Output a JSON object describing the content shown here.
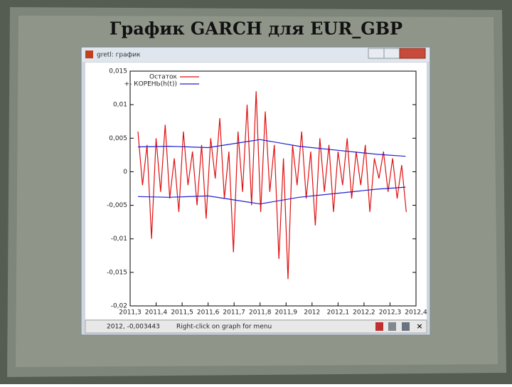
{
  "slide_title": "График GARCH для EUR_GBP",
  "window": {
    "title": "gretl: график",
    "status_coords": "2012, -0,003443",
    "status_hint": "Right-click on graph for menu"
  },
  "chart_data": {
    "type": "line",
    "xlim": [
      2011.3,
      2012.4
    ],
    "xticks": [
      {
        "value": 2011.3,
        "label": "2011,3"
      },
      {
        "value": 2011.4,
        "label": "2011,4"
      },
      {
        "value": 2011.5,
        "label": "2011,5"
      },
      {
        "value": 2011.6,
        "label": "2011,6"
      },
      {
        "value": 2011.7,
        "label": "2011,7"
      },
      {
        "value": 2011.8,
        "label": "2011,8"
      },
      {
        "value": 2011.9,
        "label": "2011,9"
      },
      2012,
      {
        "value": 2012.1,
        "label": "2012,1"
      },
      {
        "value": 2012.2,
        "label": "2012,2"
      },
      {
        "value": 2012.3,
        "label": "2012,3"
      },
      {
        "value": 2012.4,
        "label": "2012,4"
      }
    ],
    "ylim": [
      -0.02,
      0.015
    ],
    "yticks": [
      {
        "value": 0.015,
        "label": "0,015"
      },
      {
        "value": 0.01,
        "label": "0,01"
      },
      {
        "value": 0.005,
        "label": "0,005"
      },
      0,
      {
        "value": -0.005,
        "label": "-0,005"
      },
      {
        "value": -0.01,
        "label": "-0,01"
      },
      {
        "value": -0.015,
        "label": "-0,015"
      },
      {
        "value": -0.02,
        "label": "-0,02"
      }
    ],
    "series": [
      {
        "name": "Остаток",
        "color": "#e01010",
        "x": [
          2011.33,
          2011.3475,
          2011.365,
          2011.3825,
          2011.4,
          2011.4175,
          2011.435,
          2011.4525,
          2011.47,
          2011.4875,
          2011.505,
          2011.5225,
          2011.54,
          2011.5575,
          2011.575,
          2011.5925,
          2011.61,
          2011.6275,
          2011.645,
          2011.6625,
          2011.68,
          2011.6975,
          2011.715,
          2011.7325,
          2011.75,
          2011.7675,
          2011.785,
          2011.8025,
          2011.82,
          2011.8375,
          2011.855,
          2011.8725,
          2011.89,
          2011.9075,
          2011.925,
          2011.9425,
          2011.96,
          2011.9775,
          2011.995,
          2012.0125,
          2012.03,
          2012.0475,
          2012.065,
          2012.0825,
          2012.1,
          2012.1175,
          2012.135,
          2012.1525,
          2012.17,
          2012.1875,
          2012.205,
          2012.2225,
          2012.24,
          2012.2575,
          2012.275,
          2012.2925,
          2012.31,
          2012.3275,
          2012.345,
          2012.3625
        ],
        "values": [
          0.006,
          -0.002,
          0.004,
          -0.01,
          0.005,
          -0.003,
          0.007,
          -0.004,
          0.002,
          -0.006,
          0.006,
          -0.002,
          0.003,
          -0.005,
          0.004,
          -0.007,
          0.005,
          -0.001,
          0.008,
          -0.004,
          0.003,
          -0.012,
          0.006,
          -0.003,
          0.01,
          -0.005,
          0.012,
          -0.006,
          0.009,
          -0.003,
          0.004,
          -0.013,
          0.002,
          -0.016,
          0.004,
          -0.002,
          0.006,
          -0.004,
          0.003,
          -0.008,
          0.005,
          -0.003,
          0.004,
          -0.006,
          0.003,
          -0.002,
          0.005,
          -0.004,
          0.003,
          -0.002,
          0.004,
          -0.006,
          0.002,
          -0.001,
          0.003,
          -0.003,
          0.002,
          -0.004,
          0.001,
          -0.006
        ]
      },
      {
        "name": "+- КОРЕНЬ(h(t))",
        "color": "#2020d0",
        "x": [
          2011.33,
          2011.45,
          2011.6,
          2011.75,
          2011.8,
          2011.95,
          2012.1,
          2012.25,
          2012.36
        ],
        "values": [
          0.0037,
          0.0038,
          0.0036,
          0.0045,
          0.0048,
          0.0038,
          0.0032,
          0.0026,
          0.0023
        ]
      },
      {
        "color": "#2020d0",
        "x": [
          2011.33,
          2011.45,
          2011.6,
          2011.75,
          2011.8,
          2011.95,
          2012.1,
          2012.25,
          2012.36
        ],
        "values": [
          -0.0037,
          -0.0038,
          -0.0036,
          -0.0045,
          -0.0048,
          -0.0038,
          -0.0032,
          -0.0026,
          -0.0023
        ]
      }
    ]
  }
}
